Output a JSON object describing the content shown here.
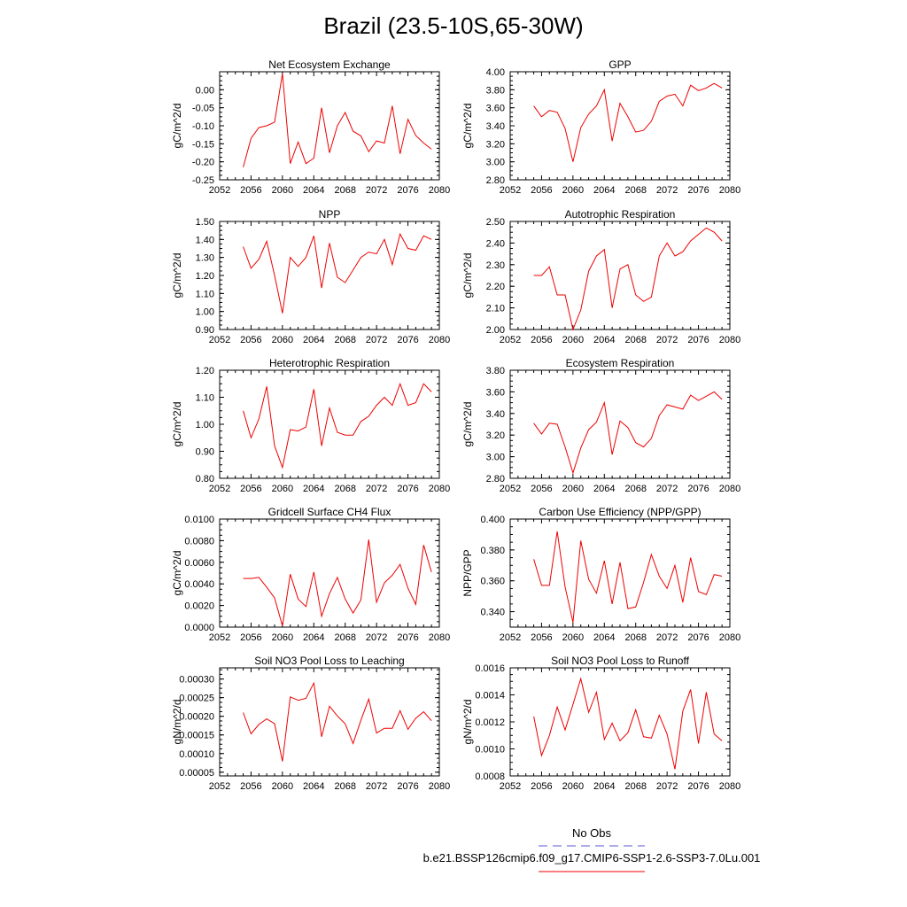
{
  "figure": {
    "title": "Brazil (23.5-10S,65-30W)",
    "legend": [
      {
        "label": "No Obs",
        "color": "#5a5ad6",
        "style": "dashed"
      },
      {
        "label": "b.e21.BSSP126cmip6.f09_g17.CMIP6-SSP1-2.6-SSP3-7.0Lu.001",
        "color": "#ee0000",
        "style": "solid"
      }
    ]
  },
  "chart_data": [
    {
      "type": "line",
      "title": "Net Ecosystem Exchange",
      "ylabel": "gC/m^2/d",
      "xlim": [
        2052,
        2080
      ],
      "ylim": [
        -0.25,
        0.05
      ],
      "xticks": [
        2052,
        2056,
        2060,
        2064,
        2068,
        2072,
        2076,
        2080
      ],
      "yticks": [
        -0.25,
        -0.2,
        -0.15,
        -0.1,
        -0.05,
        0.0
      ],
      "ytick_decimals": 2,
      "x": [
        2055,
        2056,
        2057,
        2058,
        2059,
        2060,
        2061,
        2062,
        2063,
        2064,
        2065,
        2066,
        2067,
        2068,
        2069,
        2070,
        2071,
        2072,
        2073,
        2074,
        2075,
        2076,
        2077,
        2078,
        2079
      ],
      "series": [
        {
          "name": "b.e21.BSSP126cmip6.f09_g17.CMIP6-SSP1-2.6-SSP3-7.0Lu.001",
          "color": "#ee0000",
          "values": [
            -0.215,
            -0.135,
            -0.105,
            -0.1,
            -0.09,
            0.045,
            -0.205,
            -0.145,
            -0.205,
            -0.19,
            -0.05,
            -0.175,
            -0.1,
            -0.063,
            -0.115,
            -0.128,
            -0.172,
            -0.142,
            -0.148,
            -0.045,
            -0.178,
            -0.082,
            -0.127,
            -0.148,
            -0.165
          ]
        }
      ]
    },
    {
      "type": "line",
      "title": "GPP",
      "ylabel": "gC/m^2/d",
      "xlim": [
        2052,
        2080
      ],
      "ylim": [
        2.8,
        4.0
      ],
      "xticks": [
        2052,
        2056,
        2060,
        2064,
        2068,
        2072,
        2076,
        2080
      ],
      "yticks": [
        2.8,
        3.0,
        3.2,
        3.4,
        3.6,
        3.8,
        4.0
      ],
      "ytick_decimals": 2,
      "x": [
        2055,
        2056,
        2057,
        2058,
        2059,
        2060,
        2061,
        2062,
        2063,
        2064,
        2065,
        2066,
        2067,
        2068,
        2069,
        2070,
        2071,
        2072,
        2073,
        2074,
        2075,
        2076,
        2077,
        2078,
        2079
      ],
      "series": [
        {
          "name": "b.e21.BSSP126cmip6.f09_g17.CMIP6-SSP1-2.6-SSP3-7.0Lu.001",
          "color": "#ee0000",
          "values": [
            3.62,
            3.5,
            3.57,
            3.55,
            3.37,
            3.0,
            3.38,
            3.53,
            3.62,
            3.8,
            3.23,
            3.65,
            3.5,
            3.33,
            3.35,
            3.45,
            3.67,
            3.73,
            3.75,
            3.62,
            3.85,
            3.79,
            3.82,
            3.87,
            3.82
          ]
        }
      ]
    },
    {
      "type": "line",
      "title": "NPP",
      "ylabel": "gC/m^2/d",
      "xlim": [
        2052,
        2080
      ],
      "ylim": [
        0.9,
        1.5
      ],
      "xticks": [
        2052,
        2056,
        2060,
        2064,
        2068,
        2072,
        2076,
        2080
      ],
      "yticks": [
        0.9,
        1.0,
        1.1,
        1.2,
        1.3,
        1.4,
        1.5
      ],
      "ytick_decimals": 2,
      "x": [
        2055,
        2056,
        2057,
        2058,
        2059,
        2060,
        2061,
        2062,
        2063,
        2064,
        2065,
        2066,
        2067,
        2068,
        2069,
        2070,
        2071,
        2072,
        2073,
        2074,
        2075,
        2076,
        2077,
        2078,
        2079
      ],
      "series": [
        {
          "name": "b.e21.BSSP126cmip6.f09_g17.CMIP6-SSP1-2.6-SSP3-7.0Lu.001",
          "color": "#ee0000",
          "values": [
            1.36,
            1.24,
            1.29,
            1.39,
            1.2,
            0.99,
            1.3,
            1.25,
            1.3,
            1.42,
            1.13,
            1.38,
            1.19,
            1.16,
            1.23,
            1.3,
            1.33,
            1.32,
            1.4,
            1.26,
            1.43,
            1.35,
            1.34,
            1.42,
            1.4
          ]
        }
      ]
    },
    {
      "type": "line",
      "title": "Autotrophic Respiration",
      "ylabel": "gC/m^2/d",
      "xlim": [
        2052,
        2080
      ],
      "ylim": [
        2.0,
        2.5
      ],
      "xticks": [
        2052,
        2056,
        2060,
        2064,
        2068,
        2072,
        2076,
        2080
      ],
      "yticks": [
        2.0,
        2.1,
        2.2,
        2.3,
        2.4,
        2.5
      ],
      "ytick_decimals": 2,
      "x": [
        2055,
        2056,
        2057,
        2058,
        2059,
        2060,
        2061,
        2062,
        2063,
        2064,
        2065,
        2066,
        2067,
        2068,
        2069,
        2070,
        2071,
        2072,
        2073,
        2074,
        2075,
        2076,
        2077,
        2078,
        2079
      ],
      "series": [
        {
          "name": "b.e21.BSSP126cmip6.f09_g17.CMIP6-SSP1-2.6-SSP3-7.0Lu.001",
          "color": "#ee0000",
          "values": [
            2.25,
            2.25,
            2.29,
            2.16,
            2.16,
            2.0,
            2.09,
            2.27,
            2.34,
            2.37,
            2.1,
            2.28,
            2.3,
            2.16,
            2.13,
            2.15,
            2.34,
            2.4,
            2.34,
            2.36,
            2.41,
            2.44,
            2.47,
            2.45,
            2.41
          ]
        }
      ]
    },
    {
      "type": "line",
      "title": "Heterotrophic Respiration",
      "ylabel": "gC/m^2/d",
      "xlim": [
        2052,
        2080
      ],
      "ylim": [
        0.8,
        1.2
      ],
      "xticks": [
        2052,
        2056,
        2060,
        2064,
        2068,
        2072,
        2076,
        2080
      ],
      "yticks": [
        0.8,
        0.9,
        1.0,
        1.1,
        1.2
      ],
      "ytick_decimals": 2,
      "x": [
        2055,
        2056,
        2057,
        2058,
        2059,
        2060,
        2061,
        2062,
        2063,
        2064,
        2065,
        2066,
        2067,
        2068,
        2069,
        2070,
        2071,
        2072,
        2073,
        2074,
        2075,
        2076,
        2077,
        2078,
        2079
      ],
      "series": [
        {
          "name": "b.e21.BSSP126cmip6.f09_g17.CMIP6-SSP1-2.6-SSP3-7.0Lu.001",
          "color": "#ee0000",
          "values": [
            1.05,
            0.95,
            1.02,
            1.14,
            0.92,
            0.84,
            0.98,
            0.975,
            0.99,
            1.13,
            0.92,
            1.06,
            0.97,
            0.96,
            0.96,
            1.01,
            1.03,
            1.07,
            1.1,
            1.07,
            1.15,
            1.07,
            1.08,
            1.15,
            1.12
          ]
        }
      ]
    },
    {
      "type": "line",
      "title": "Ecosystem Respiration",
      "ylabel": "gC/m^2/d",
      "xlim": [
        2052,
        2080
      ],
      "ylim": [
        2.8,
        3.8
      ],
      "xticks": [
        2052,
        2056,
        2060,
        2064,
        2068,
        2072,
        2076,
        2080
      ],
      "yticks": [
        2.8,
        3.0,
        3.2,
        3.4,
        3.6,
        3.8
      ],
      "ytick_decimals": 2,
      "x": [
        2055,
        2056,
        2057,
        2058,
        2059,
        2060,
        2061,
        2062,
        2063,
        2064,
        2065,
        2066,
        2067,
        2068,
        2069,
        2070,
        2071,
        2072,
        2073,
        2074,
        2075,
        2076,
        2077,
        2078,
        2079
      ],
      "series": [
        {
          "name": "b.e21.BSSP126cmip6.f09_g17.CMIP6-SSP1-2.6-SSP3-7.0Lu.001",
          "color": "#ee0000",
          "values": [
            3.31,
            3.21,
            3.31,
            3.3,
            3.09,
            2.85,
            3.08,
            3.25,
            3.32,
            3.5,
            3.02,
            3.33,
            3.27,
            3.13,
            3.09,
            3.17,
            3.38,
            3.48,
            3.46,
            3.44,
            3.57,
            3.52,
            3.56,
            3.6,
            3.53
          ]
        }
      ]
    },
    {
      "type": "line",
      "title": "Gridcell Surface CH4 Flux",
      "ylabel": "gC/m^2/d",
      "xlim": [
        2052,
        2080
      ],
      "ylim": [
        0.0,
        0.01
      ],
      "xticks": [
        2052,
        2056,
        2060,
        2064,
        2068,
        2072,
        2076,
        2080
      ],
      "yticks": [
        0.0,
        0.002,
        0.004,
        0.006,
        0.008,
        0.01
      ],
      "ytick_decimals": 4,
      "x": [
        2055,
        2056,
        2057,
        2058,
        2059,
        2060,
        2061,
        2062,
        2063,
        2064,
        2065,
        2066,
        2067,
        2068,
        2069,
        2070,
        2071,
        2072,
        2073,
        2074,
        2075,
        2076,
        2077,
        2078,
        2079
      ],
      "series": [
        {
          "name": "b.e21.BSSP126cmip6.f09_g17.CMIP6-SSP1-2.6-SSP3-7.0Lu.001",
          "color": "#ee0000",
          "values": [
            0.0045,
            0.0045,
            0.0046,
            0.0037,
            0.0027,
            0.0001,
            0.0049,
            0.0026,
            0.0019,
            0.0051,
            0.001,
            0.0031,
            0.0046,
            0.0026,
            0.0013,
            0.0025,
            0.0081,
            0.0023,
            0.0041,
            0.0048,
            0.0058,
            0.0036,
            0.0021,
            0.0076,
            0.0051
          ]
        }
      ]
    },
    {
      "type": "line",
      "title": "Carbon Use Efficiency (NPP/GPP)",
      "ylabel": "NPP/GPP",
      "xlim": [
        2052,
        2080
      ],
      "ylim": [
        0.33,
        0.4
      ],
      "xticks": [
        2052,
        2056,
        2060,
        2064,
        2068,
        2072,
        2076,
        2080
      ],
      "yticks": [
        0.34,
        0.36,
        0.38,
        0.4
      ],
      "ytick_decimals": 3,
      "x": [
        2055,
        2056,
        2057,
        2058,
        2059,
        2060,
        2061,
        2062,
        2063,
        2064,
        2065,
        2066,
        2067,
        2068,
        2069,
        2070,
        2071,
        2072,
        2073,
        2074,
        2075,
        2076,
        2077,
        2078,
        2079
      ],
      "series": [
        {
          "name": "b.e21.BSSP126cmip6.f09_g17.CMIP6-SSP1-2.6-SSP3-7.0Lu.001",
          "color": "#ee0000",
          "values": [
            0.374,
            0.357,
            0.357,
            0.392,
            0.356,
            0.333,
            0.386,
            0.361,
            0.352,
            0.373,
            0.345,
            0.372,
            0.342,
            0.343,
            0.359,
            0.377,
            0.363,
            0.355,
            0.37,
            0.346,
            0.375,
            0.353,
            0.351,
            0.364,
            0.363
          ]
        }
      ]
    },
    {
      "type": "line",
      "title": "Soil NO3 Pool Loss to Leaching",
      "ylabel": "gN/m^2/d",
      "xlim": [
        2052,
        2080
      ],
      "ylim": [
        4e-05,
        0.00033
      ],
      "xticks": [
        2052,
        2056,
        2060,
        2064,
        2068,
        2072,
        2076,
        2080
      ],
      "yticks": [
        5e-05,
        0.0001,
        0.00015,
        0.0002,
        0.00025,
        0.0003
      ],
      "ytick_decimals": 5,
      "x": [
        2055,
        2056,
        2057,
        2058,
        2059,
        2060,
        2061,
        2062,
        2063,
        2064,
        2065,
        2066,
        2067,
        2068,
        2069,
        2070,
        2071,
        2072,
        2073,
        2074,
        2075,
        2076,
        2077,
        2078,
        2079
      ],
      "series": [
        {
          "name": "b.e21.BSSP126cmip6.f09_g17.CMIP6-SSP1-2.6-SSP3-7.0Lu.001",
          "color": "#ee0000",
          "values": [
            0.00021,
            0.000153,
            0.000178,
            0.000193,
            0.00018,
            7.9e-05,
            0.000252,
            0.000243,
            0.000248,
            0.000289,
            0.000145,
            0.000227,
            0.000201,
            0.00018,
            0.000127,
            0.000189,
            0.000246,
            0.000155,
            0.000168,
            0.000168,
            0.000215,
            0.000165,
            0.000195,
            0.000212,
            0.000188
          ]
        }
      ]
    },
    {
      "type": "line",
      "title": "Soil NO3 Pool Loss to Runoff",
      "ylabel": "gN/m^2/d",
      "xlim": [
        2052,
        2080
      ],
      "ylim": [
        0.0008,
        0.0016
      ],
      "xticks": [
        2052,
        2056,
        2060,
        2064,
        2068,
        2072,
        2076,
        2080
      ],
      "yticks": [
        0.0008,
        0.001,
        0.0012,
        0.0014,
        0.0016
      ],
      "ytick_decimals": 4,
      "x": [
        2055,
        2056,
        2057,
        2058,
        2059,
        2060,
        2061,
        2062,
        2063,
        2064,
        2065,
        2066,
        2067,
        2068,
        2069,
        2070,
        2071,
        2072,
        2073,
        2074,
        2075,
        2076,
        2077,
        2078,
        2079
      ],
      "series": [
        {
          "name": "b.e21.BSSP126cmip6.f09_g17.CMIP6-SSP1-2.6-SSP3-7.0Lu.001",
          "color": "#ee0000",
          "values": [
            0.00124,
            0.00095,
            0.0011,
            0.00131,
            0.00114,
            0.00133,
            0.00152,
            0.00127,
            0.00142,
            0.00107,
            0.00119,
            0.00106,
            0.00112,
            0.00129,
            0.00109,
            0.00108,
            0.00125,
            0.00111,
            0.00085,
            0.00128,
            0.00144,
            0.00104,
            0.00142,
            0.00111,
            0.00106
          ]
        }
      ]
    }
  ]
}
